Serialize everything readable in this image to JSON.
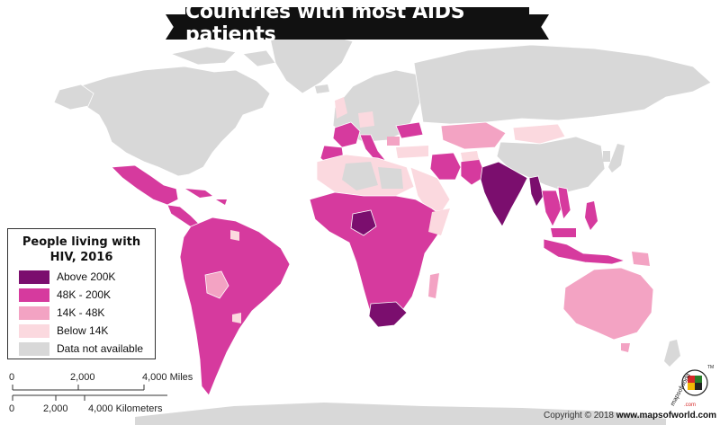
{
  "title": "Countries with most AIDS patients",
  "legend": {
    "title_line1": "People living with",
    "title_line2": "HIV, 2016",
    "items": [
      {
        "label": "Above 200K",
        "color": "#7b0e6e"
      },
      {
        "label": "48K - 200K",
        "color": "#d63a9e"
      },
      {
        "label": "14K - 48K",
        "color": "#f3a3c3"
      },
      {
        "label": "Below 14K",
        "color": "#fbd9df"
      },
      {
        "label": "Data not available",
        "color": "#d8d8d8"
      }
    ]
  },
  "scale": {
    "miles_ticks": [
      "0",
      "2,000",
      "4,000 Miles"
    ],
    "km_ticks": [
      "0",
      "2,000",
      "4,000 Kilometers"
    ]
  },
  "copyright": {
    "prefix": "Copyright © 2018",
    "site": "www.mapsofworld.com"
  },
  "logo": {
    "text": "mapsofworld",
    "suffix": ".com",
    "trademark": "TM"
  },
  "colors": {
    "ocean": "#ffffff",
    "no_data": "#d8d8d8",
    "border": "#ffffff"
  }
}
